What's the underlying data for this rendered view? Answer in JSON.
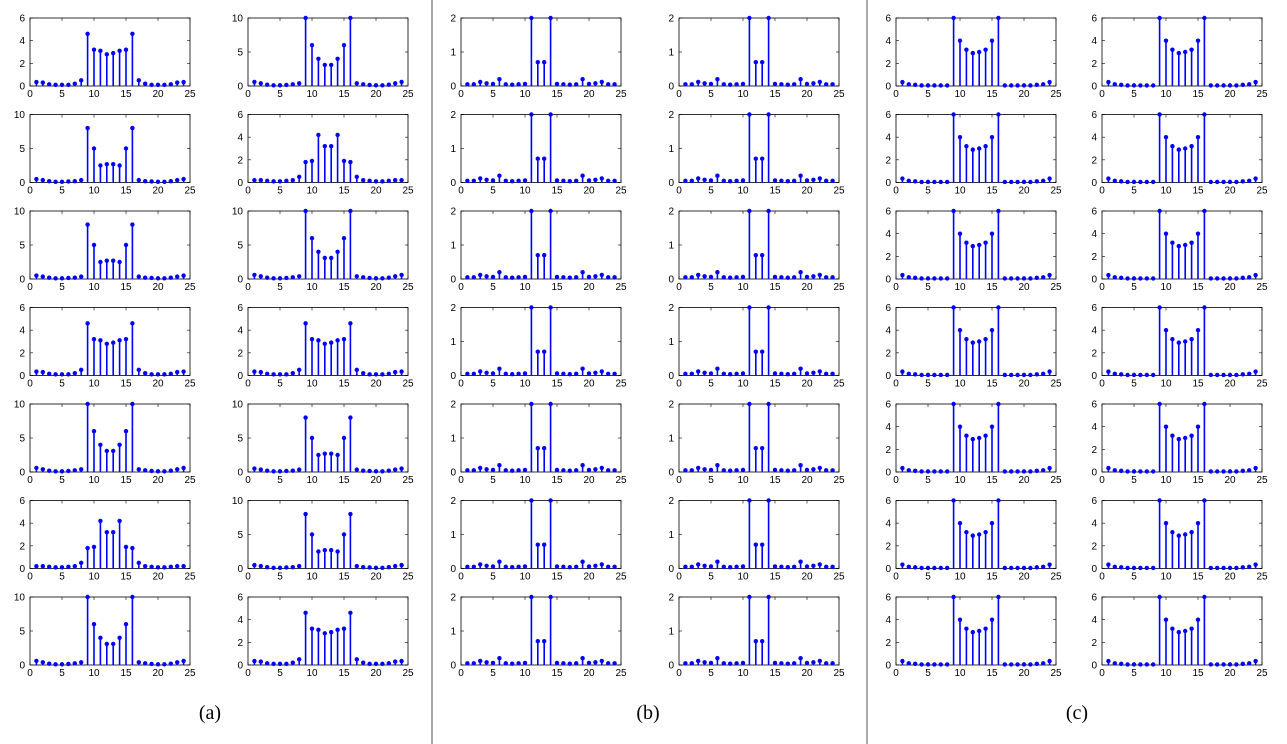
{
  "panel_labels": [
    "(a)",
    "(b)",
    "(c)"
  ],
  "chart_data": {
    "type": "stem",
    "layout": {
      "groups": 3,
      "rows_per_group": 7,
      "cols_per_group": 2
    },
    "x": [
      1,
      2,
      3,
      4,
      5,
      6,
      7,
      8,
      9,
      10,
      11,
      12,
      13,
      14,
      15,
      16,
      17,
      18,
      19,
      20,
      21,
      22,
      23,
      24
    ],
    "xlim": [
      0,
      25
    ],
    "xticks": [
      0,
      5,
      10,
      15,
      20,
      25
    ],
    "color": "#0000ff",
    "patterns": {
      "A4": {
        "ylim": [
          0,
          6
        ],
        "yticks": [
          0,
          2,
          4,
          6
        ],
        "values": [
          0.35,
          0.3,
          0.15,
          0.1,
          0.1,
          0.1,
          0.2,
          0.5,
          4.6,
          3.2,
          3.1,
          2.8,
          2.9,
          3.1,
          3.2,
          4.6,
          0.5,
          0.2,
          0.1,
          0.1,
          0.1,
          0.15,
          0.3,
          0.35
        ]
      },
      "A10": {
        "ylim": [
          0,
          10
        ],
        "yticks": [
          0,
          5,
          10
        ],
        "values": [
          0.6,
          0.4,
          0.2,
          0.1,
          0.1,
          0.15,
          0.25,
          0.4,
          10,
          6,
          4,
          3.1,
          3.1,
          4,
          6,
          10,
          0.4,
          0.25,
          0.15,
          0.1,
          0.1,
          0.2,
          0.4,
          0.6
        ]
      },
      "A8": {
        "ylim": [
          0,
          10
        ],
        "yticks": [
          0,
          5,
          10
        ],
        "values": [
          0.5,
          0.35,
          0.2,
          0.1,
          0.1,
          0.15,
          0.2,
          0.35,
          8,
          5,
          2.5,
          2.7,
          2.7,
          2.5,
          5,
          8,
          0.35,
          0.2,
          0.15,
          0.1,
          0.1,
          0.2,
          0.35,
          0.5
        ]
      },
      "AM": {
        "ylim": [
          0,
          6
        ],
        "yticks": [
          0,
          2,
          4,
          6
        ],
        "values": [
          0.2,
          0.2,
          0.15,
          0.1,
          0.1,
          0.15,
          0.2,
          0.5,
          1.8,
          1.9,
          4.2,
          3.2,
          3.2,
          4.2,
          1.9,
          1.8,
          0.5,
          0.2,
          0.15,
          0.1,
          0.1,
          0.15,
          0.2,
          0.2
        ]
      },
      "B1": {
        "ylim": [
          0,
          2
        ],
        "yticks": [
          0,
          1,
          2
        ],
        "values": [
          0.05,
          0.05,
          0.12,
          0.08,
          0.06,
          0.2,
          0.05,
          0.04,
          0.05,
          0.06,
          2,
          0.7,
          0.7,
          2,
          0.06,
          0.05,
          0.04,
          0.05,
          0.2,
          0.06,
          0.08,
          0.12,
          0.05,
          0.05
        ]
      },
      "B2": {
        "ylim": [
          0,
          2
        ],
        "yticks": [
          0,
          1,
          2
        ],
        "values": [
          0.05,
          0.05,
          0.12,
          0.08,
          0.06,
          0.2,
          0.05,
          0.04,
          0.05,
          0.06,
          2,
          0.7,
          0.7,
          2,
          0.06,
          0.05,
          0.04,
          0.05,
          0.2,
          0.06,
          0.08,
          0.12,
          0.05,
          0.05
        ]
      },
      "C": {
        "ylim": [
          0,
          6
        ],
        "yticks": [
          0,
          2,
          4,
          6
        ],
        "values": [
          0.35,
          0.15,
          0.1,
          0.05,
          0.05,
          0.05,
          0.05,
          0.05,
          6,
          4,
          3.2,
          2.9,
          3,
          3.2,
          4,
          6,
          0.05,
          0.05,
          0.05,
          0.05,
          0.05,
          0.1,
          0.15,
          0.35
        ]
      }
    },
    "grid": false,
    "assignment": [
      [
        "A4",
        "A10"
      ],
      [
        "A8",
        "AM"
      ],
      [
        "A8",
        "A10"
      ],
      [
        "A4",
        "A4"
      ],
      [
        "A10",
        "A8"
      ],
      [
        "AM",
        "A8"
      ],
      [
        "A10",
        "A4"
      ],
      [
        "B1",
        "B2"
      ],
      [
        "B1",
        "B2"
      ],
      [
        "B1",
        "B2"
      ],
      [
        "B1",
        "B2"
      ],
      [
        "B1",
        "B2"
      ],
      [
        "B1",
        "B2"
      ],
      [
        "B1",
        "B2"
      ],
      [
        "C",
        "C"
      ],
      [
        "C",
        "C"
      ],
      [
        "C",
        "C"
      ],
      [
        "C",
        "C"
      ],
      [
        "C",
        "C"
      ],
      [
        "C",
        "C"
      ],
      [
        "C",
        "C"
      ]
    ]
  }
}
